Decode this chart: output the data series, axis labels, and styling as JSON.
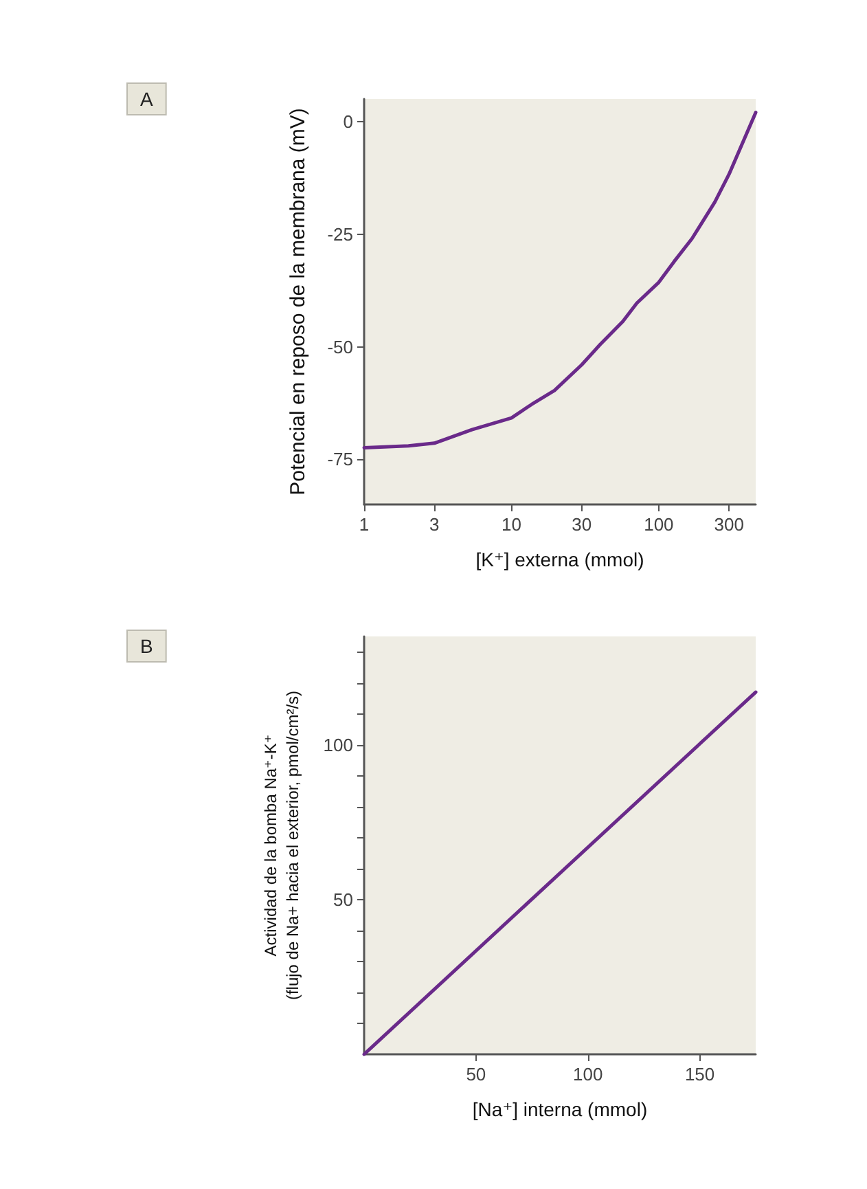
{
  "chart_data": [
    {
      "type": "line",
      "annotations": [
        "A"
      ],
      "xlabel": "[K⁺] externa (mmol)",
      "ylabel": "Potencial en reposo de la membrana (mV)",
      "log": "x",
      "xlim": [
        1,
        455
      ],
      "xticks": [
        1,
        3,
        10,
        30,
        100,
        300
      ],
      "ylim": [
        -85,
        5
      ],
      "yticks": [
        -75,
        -50,
        -25,
        0
      ],
      "grid": false,
      "marker": "none",
      "line_style": "solid",
      "x": [
        1,
        2,
        3,
        5.4,
        10,
        13.7,
        19.6,
        30,
        40,
        57,
        71,
        100,
        127,
        168,
        240,
        300,
        455
      ],
      "series": [
        {
          "color": "#6a2a8a",
          "values": [
            -72.4,
            -72,
            -71.4,
            -68.4,
            -65.8,
            -62.8,
            -59.7,
            -54,
            -49.5,
            -44.4,
            -40.3,
            -35.7,
            -31.1,
            -26,
            -17.9,
            -11.7,
            2
          ]
        }
      ]
    },
    {
      "type": "line",
      "annotations": [
        "B"
      ],
      "xlabel": "[Na⁺] interna (mmol)",
      "ylabel": "Actividad de la bomba Na⁺-K⁺\n(flujo de Na+ hacia el exterior, pmol/cm²/s)",
      "xlim": [
        0,
        175
      ],
      "xticks": [
        50,
        100,
        150
      ],
      "ylim": [
        0,
        135
      ],
      "yticks": [
        {
          "value": 10,
          "label": null
        },
        {
          "value": 20,
          "label": null
        },
        {
          "value": 30,
          "label": null
        },
        {
          "value": 40,
          "label": null
        },
        50,
        {
          "value": 60,
          "label": null
        },
        {
          "value": 70,
          "label": null
        },
        {
          "value": 80,
          "label": null
        },
        {
          "value": 90,
          "label": null
        },
        100,
        {
          "value": 110,
          "label": null
        },
        {
          "value": 120,
          "label": null
        },
        {
          "value": 130,
          "label": null
        }
      ],
      "grid": false,
      "marker": "none",
      "line_style": "solid",
      "x": [
        0,
        175
      ],
      "series": [
        {
          "color": "#6a2a8a",
          "values": [
            0,
            117
          ]
        }
      ]
    }
  ]
}
